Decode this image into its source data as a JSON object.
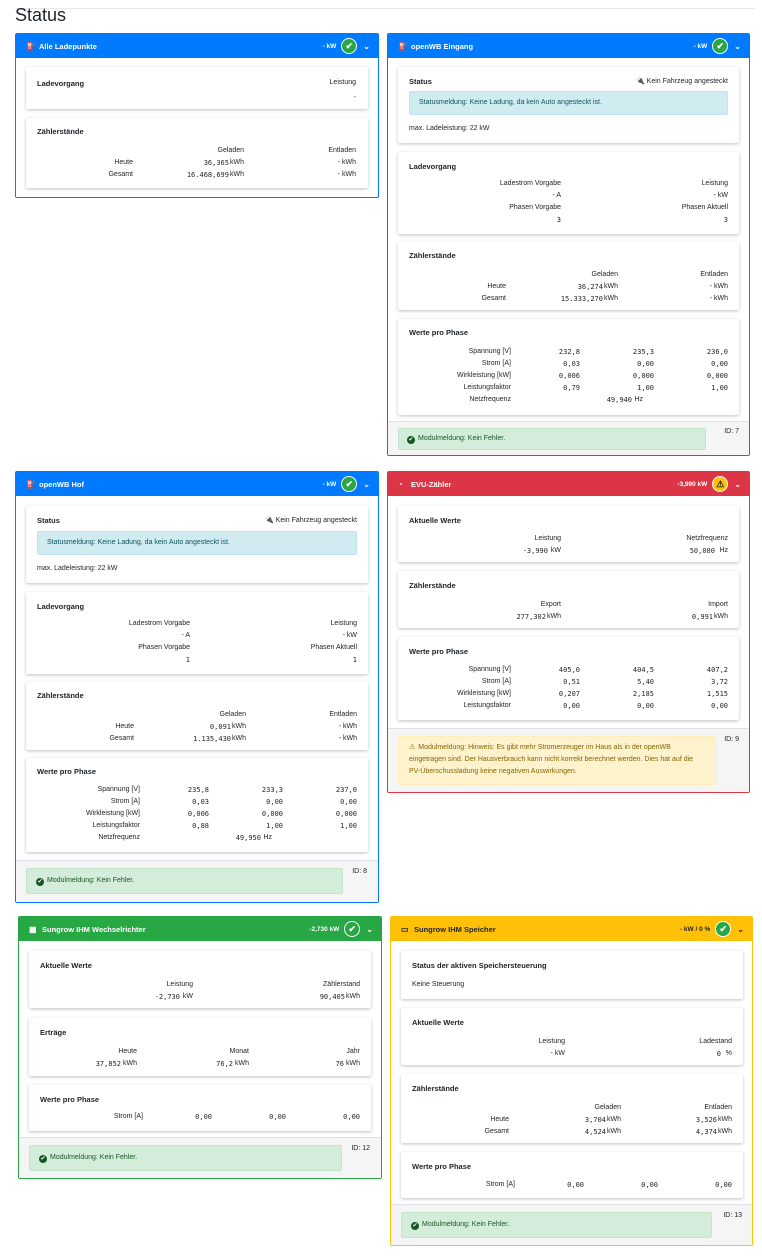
{
  "page_title": "Status",
  "colors": {
    "blue": "#007bff",
    "red": "#dc3545",
    "green": "#28a745",
    "yellow": "#ffc107",
    "ok": "#28a745",
    "warn": "#ffc107"
  },
  "common": {
    "status": "Status",
    "ladevorgang": "Ladevorgang",
    "zaehlerstaende": "Zählerstände",
    "werte_pro_phase": "Werte pro Phase",
    "leistung": "Leistung",
    "geladen": "Geladen",
    "entladen": "Entladen",
    "heute": "Heute",
    "gesamt": "Gesamt",
    "ladestrom_vorgabe": "Ladestrom Vorgabe",
    "phasen_vorgabe": "Phasen Vorgabe",
    "phasen_aktuell": "Phasen Aktuell",
    "spannung": "Spannung [V]",
    "strom": "Strom [A]",
    "wirkleistung": "Wirkleistung [kW]",
    "leistungsfaktor": "Leistungsfaktor",
    "netzfrequenz": "Netzfrequenz",
    "aktuelle_werte": "Aktuelle Werte",
    "export": "Export",
    "import": "Import",
    "zaehlerstand": "Zählerstand",
    "ertraege": "Erträge",
    "monat": "Monat",
    "jahr": "Jahr",
    "ladestand": "Ladestand",
    "kein_fahrzeug": "Kein Fahrzeug angesteckt",
    "statusmeldung": "Statusmeldung: Keine Ladung, da kein Auto angesteckt ist.",
    "max_ladeleistung": "max. Ladeleistung: 22 kW",
    "modul_ok": "Modulmeldung: Kein Fehler.",
    "dash": "-",
    "dash_a": "- A",
    "dash_kw": "- kW",
    "dash_kwh": "- kWh",
    "unit_kw": "kW",
    "unit_kwh": "kWh",
    "unit_hz": "Hz",
    "unit_pct": "%"
  },
  "alle": {
    "title": "Alle Ladepunkte",
    "header_value": "- kW",
    "leistung_value": "-",
    "heute_geladen": "36,365",
    "gesamt_geladen": "16.468,699"
  },
  "eingang": {
    "title": "openWB Eingang",
    "header_value": "- kW",
    "phasen_vorgabe": "3",
    "phasen_aktuell": "3",
    "heute_geladen": "36,274",
    "gesamt_geladen": "15.333,270",
    "spannung": [
      "232,8",
      "235,3",
      "236,0"
    ],
    "strom": [
      "0,03",
      "0,00",
      "0,00"
    ],
    "wirkleistung": [
      "0,006",
      "0,000",
      "0,000"
    ],
    "leistungsfaktor": [
      "0,79",
      "1,00",
      "1,00"
    ],
    "netzfrequenz": "49,940",
    "id": "ID: 7"
  },
  "hof": {
    "title": "openWB Hof",
    "header_value": "- kW",
    "phasen_vorgabe": "1",
    "phasen_aktuell": "1",
    "heute_geladen": "0,091",
    "gesamt_geladen": "1.135,430",
    "spannung": [
      "235,8",
      "233,3",
      "237,0"
    ],
    "strom": [
      "0,03",
      "0,00",
      "0,00"
    ],
    "wirkleistung": [
      "0,006",
      "0,000",
      "0,000"
    ],
    "leistungsfaktor": [
      "0,88",
      "1,00",
      "1,00"
    ],
    "netzfrequenz": "49,950",
    "id": "ID: 8"
  },
  "evu": {
    "title": "EVU-Zähler",
    "header_value": "-3,990 kW",
    "leistung": "-3,990",
    "netzfrequenz": "50,000",
    "export": "277,302",
    "import": "0,991",
    "spannung": [
      "405,0",
      "404,5",
      "407,2"
    ],
    "strom": [
      "0,51",
      "5,40",
      "3,72"
    ],
    "wirkleistung": [
      "0,207",
      "2,185",
      "1,515"
    ],
    "leistungsfaktor": [
      "0,00",
      "0,00",
      "0,00"
    ],
    "warn_message": "Modulmeldung: Hinweis: Es gibt mehr Stromerzeuger im Haus als in der openWB eingetragen sind. Der Hausverbrauch kann nicht korrekt berechnet werden. Dies hat auf die PV-Überschussladung keine negativen Auswirkungen.",
    "id": "ID: 9"
  },
  "wr": {
    "title": "Sungrow IHM Wechselrichter",
    "header_value": "-2,730 kW",
    "leistung": "-2,730",
    "zaehlerstand": "90,405",
    "heute": "37,852",
    "monat": "76,2",
    "jahr": "76",
    "strom": [
      "0,00",
      "0,00",
      "0,00"
    ],
    "id": "ID: 12"
  },
  "speicher": {
    "title": "Sungrow IHM Speicher",
    "header_value": "- kW / 0 %",
    "steuerung_title": "Status der aktiven Speichersteuerung",
    "steuerung_value": "Keine Steuerung",
    "ladestand": "0",
    "heute_geladen": "3,704",
    "heute_entladen": "3,526",
    "gesamt_geladen": "4,524",
    "gesamt_entladen": "4,374",
    "strom": [
      "0,00",
      "0,00",
      "0,00"
    ],
    "id": "ID: 13"
  }
}
